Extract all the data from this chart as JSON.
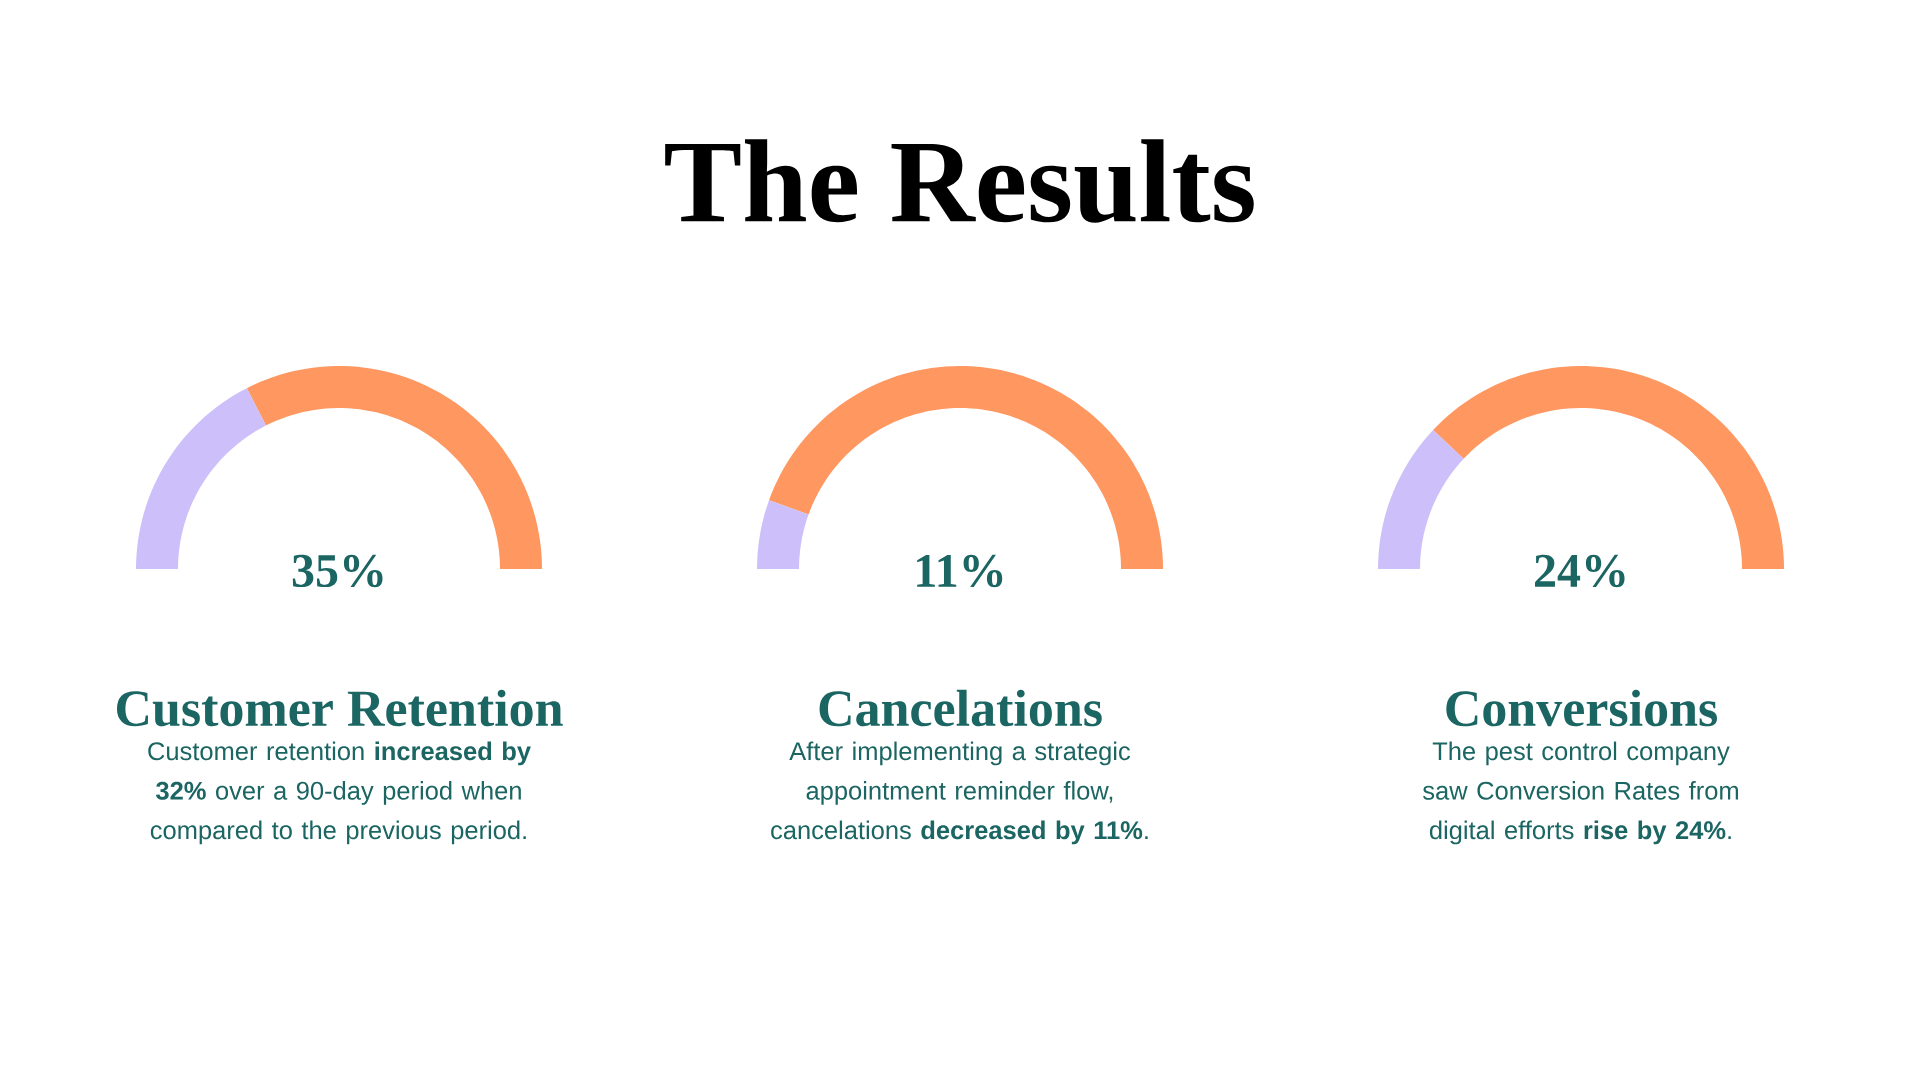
{
  "chart_data": [
    {
      "type": "other",
      "title": "The Results"
    },
    {
      "type": "donut",
      "title": "Customer Retention",
      "annotations": [
        "35%",
        "Customer retention **increased by 32%** over a 90-day period when compared to the previous period."
      ],
      "categories": [
        null,
        null
      ],
      "values": [
        35,
        65
      ],
      "colors": [
        "#cdbff9",
        "#ff9761"
      ]
    },
    {
      "type": "donut",
      "title": "Cancelations",
      "annotations": [
        "11%",
        "After implementing a strategic appointment reminder flow, cancelations **decreased by 11%**."
      ],
      "categories": [
        null,
        null
      ],
      "values": [
        11,
        89
      ],
      "colors": [
        "#cdbff9",
        "#ff9761"
      ]
    },
    {
      "type": "donut",
      "title": "Conversions",
      "annotations": [
        "24%",
        "The pest control company saw Conversion Rates from digital efforts **rise by 24%**."
      ],
      "categories": [
        null,
        null
      ],
      "values": [
        24,
        76
      ],
      "colors": [
        "#cdbff9",
        "#ff9761"
      ]
    }
  ]
}
